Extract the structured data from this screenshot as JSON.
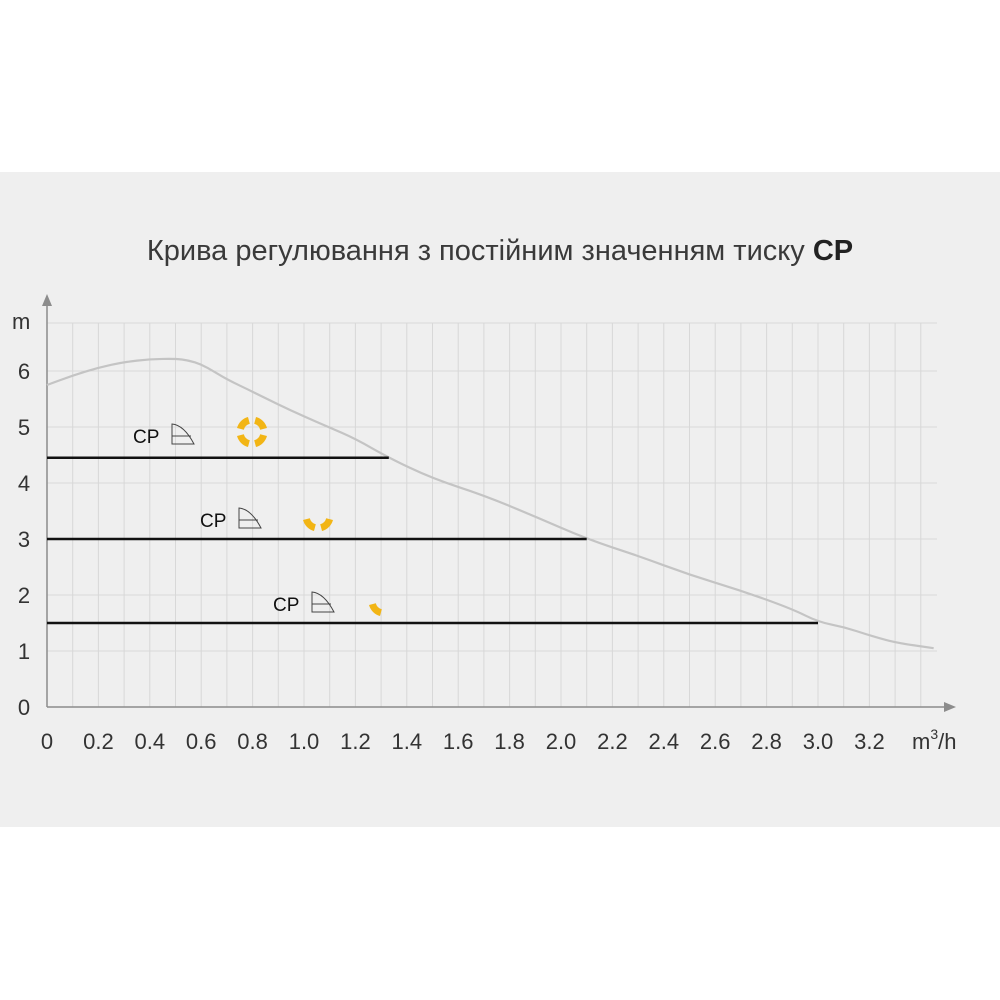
{
  "chart_data": {
    "type": "line",
    "title": "Крива регулювання з постійним значенням тиску",
    "title_bold": "CP",
    "xlabel_base": "m",
    "xlabel_sup": "3",
    "xlabel_suffix": "/h",
    "ylabel": "m",
    "xlim": [
      0,
      3.45
    ],
    "ylim": [
      0,
      6.8
    ],
    "x_ticks": [
      "0",
      "0.2",
      "0.4",
      "0.6",
      "0.8",
      "1.0",
      "1.2",
      "1.4",
      "1.6",
      "1.8",
      "2.0",
      "2.2",
      "2.4",
      "2.6",
      "2.8",
      "3.0",
      "3.2"
    ],
    "y_ticks": [
      "0",
      "1",
      "2",
      "3",
      "4",
      "5",
      "6"
    ],
    "grid": true,
    "series": [
      {
        "kind": "pump-curve",
        "color": "#c4c4c4",
        "points": [
          [
            0,
            5.75
          ],
          [
            0.1,
            5.92
          ],
          [
            0.2,
            6.06
          ],
          [
            0.3,
            6.16
          ],
          [
            0.4,
            6.21
          ],
          [
            0.5,
            6.22
          ],
          [
            0.55,
            6.19
          ],
          [
            0.6,
            6.12
          ],
          [
            0.65,
            5.99
          ],
          [
            0.7,
            5.85
          ],
          [
            0.8,
            5.63
          ],
          [
            0.9,
            5.4
          ],
          [
            1.0,
            5.19
          ],
          [
            1.1,
            4.99
          ],
          [
            1.2,
            4.79
          ],
          [
            1.33,
            4.45
          ],
          [
            1.5,
            4.08
          ],
          [
            1.7,
            3.78
          ],
          [
            1.9,
            3.4
          ],
          [
            2.1,
            3.0
          ],
          [
            2.3,
            2.7
          ],
          [
            2.5,
            2.36
          ],
          [
            2.7,
            2.08
          ],
          [
            2.9,
            1.75
          ],
          [
            3.0,
            1.52
          ],
          [
            3.1,
            1.43
          ],
          [
            3.2,
            1.28
          ],
          [
            3.3,
            1.15
          ],
          [
            3.45,
            1.05
          ]
        ]
      }
    ],
    "levels": [
      {
        "label": "CP",
        "head": 4.45,
        "x_end": 1.33,
        "icon_segments": 3
      },
      {
        "label": "CP",
        "head": 3.0,
        "x_end": 2.1,
        "icon_segments": 2
      },
      {
        "label": "CP",
        "head": 1.5,
        "x_end": 3.0,
        "icon_segments": 1
      }
    ],
    "colors": {
      "level_line": "#111111",
      "icon": "#f2b515",
      "grid": "#d8d8d8",
      "axis": "#8c8c8c"
    }
  }
}
